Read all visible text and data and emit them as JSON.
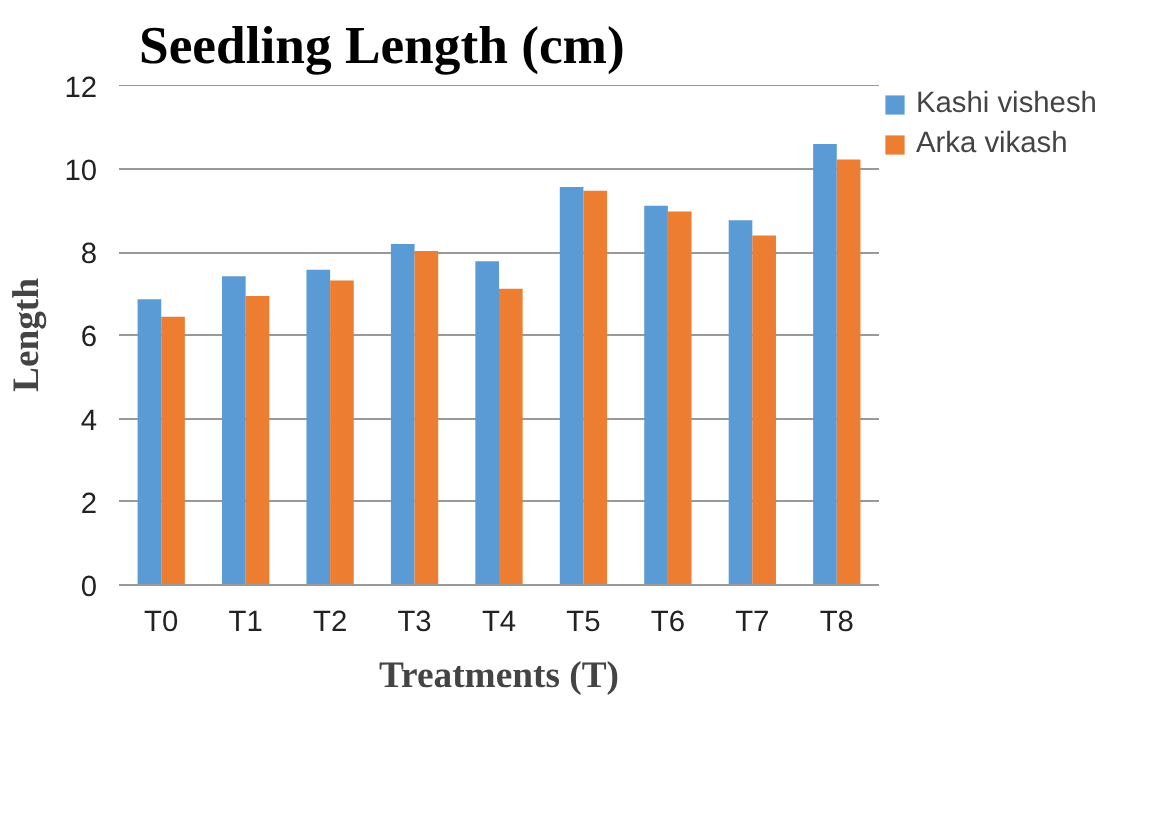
{
  "chart_data": {
    "type": "bar",
    "title": "Seedling Length (cm)",
    "xlabel": "Treatments (T)",
    "ylabel": "Length",
    "categories": [
      "T0",
      "T1",
      "T2",
      "T3",
      "T4",
      "T5",
      "T6",
      "T7",
      "T8"
    ],
    "series": [
      {
        "name": "Kashi vishesh",
        "color": "#5b9bd5",
        "values": [
          6.87,
          7.42,
          7.58,
          8.2,
          7.78,
          9.57,
          9.12,
          8.77,
          10.6
        ]
      },
      {
        "name": "Arka vikash",
        "color": "#ed7d31",
        "values": [
          6.45,
          6.95,
          7.32,
          8.03,
          7.12,
          9.48,
          8.98,
          8.4,
          10.23
        ]
      }
    ],
    "ylim": [
      0,
      12
    ],
    "yticks": [
      0,
      2,
      4,
      6,
      8,
      10,
      12
    ],
    "grid": "y",
    "legend": "top right"
  }
}
